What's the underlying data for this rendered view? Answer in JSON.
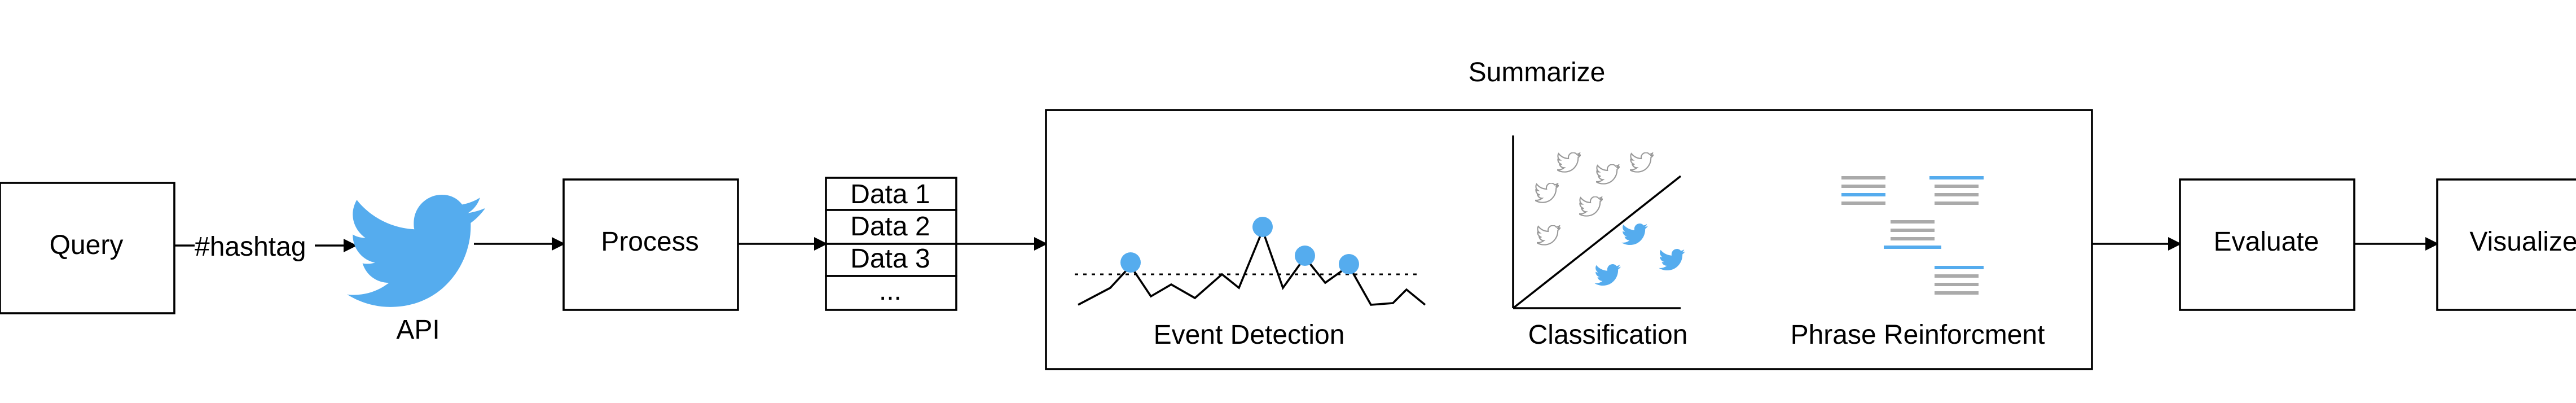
{
  "nodes": {
    "query": "Query",
    "hashtag": "#hashtag",
    "api": "API",
    "process": "Process",
    "data_items": [
      "Data 1",
      "Data 2",
      "Data 3",
      "..."
    ],
    "summarize": "Summarize",
    "event_detection": "Event Detection",
    "classification": "Classification",
    "phrase_reinforcement": "Phrase Reinforcment",
    "evaluate": "Evaluate",
    "visualize": "Visualize"
  },
  "colors": {
    "twitter_blue": "#55acee",
    "line": "#000000",
    "gray_bar": "#aaaaaa",
    "light_bird": "#bbbbbb"
  },
  "icons": {
    "api": "twitter-bird-icon"
  }
}
